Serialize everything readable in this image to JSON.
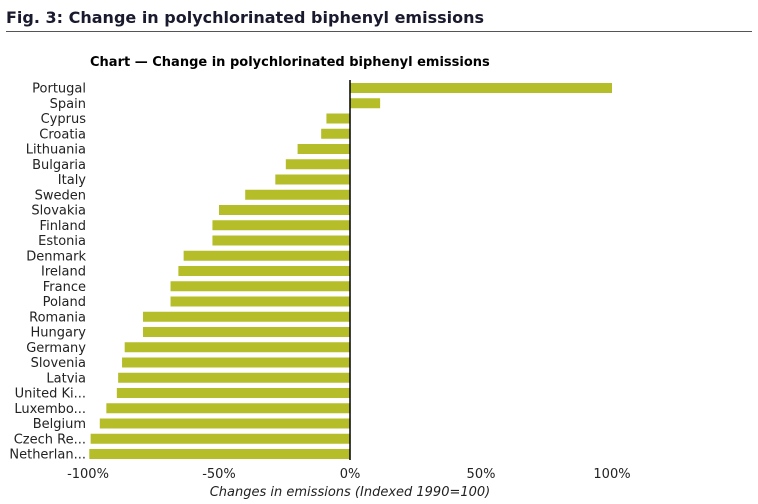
{
  "figure": {
    "title": "Fig. 3: Change in polychlorinated biphenyl emissions"
  },
  "chart_data": {
    "type": "bar",
    "orientation": "horizontal",
    "title": "Chart — Change in polychlorinated biphenyl emissions",
    "xlabel": "Changes in emissions (Indexed 1990=100)",
    "ylabel": "",
    "xlim": [
      -100,
      100
    ],
    "x_ticks": [
      -100,
      -50,
      0,
      50,
      100
    ],
    "x_tick_labels": [
      "-100%",
      "-50%",
      "0%",
      "50%",
      "100%"
    ],
    "grid": false,
    "categories": [
      "Portugal",
      "Spain",
      "Cyprus",
      "Croatia",
      "Lithuania",
      "Bulgaria",
      "Italy",
      "Sweden",
      "Slovakia",
      "Finland",
      "Estonia",
      "Denmark",
      "Ireland",
      "France",
      "Poland",
      "Romania",
      "Hungary",
      "Germany",
      "Slovenia",
      "Latvia",
      "United Ki...",
      "Luxembo...",
      "Belgium",
      "Czech Re...",
      "Netherlan..."
    ],
    "values": [
      100,
      11.5,
      -9,
      -11,
      -20,
      -24.5,
      -28.5,
      -40,
      -50,
      -52.5,
      -52.5,
      -63.5,
      -65.5,
      -68.5,
      -68.5,
      -79,
      -79,
      -86,
      -87,
      -88.5,
      -89,
      -93,
      -95.5,
      -99,
      -99.5
    ],
    "bar_color": "#b5bd28",
    "zero_line_color": "#000000"
  }
}
